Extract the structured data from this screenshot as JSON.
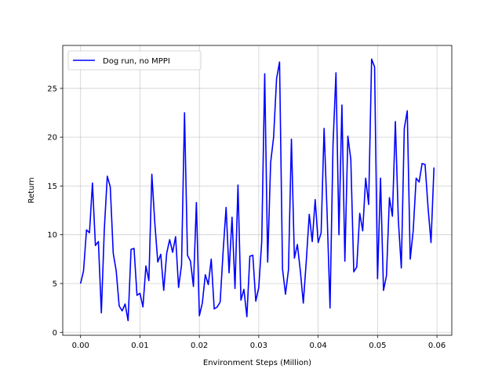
{
  "chart_data": {
    "type": "line",
    "xlabel": "Environment Steps (Million)",
    "ylabel": "Return",
    "xlim": [
      -0.003,
      0.0625
    ],
    "ylim": [
      -0.3,
      29.4
    ],
    "xticks": [
      0.0,
      0.01,
      0.02,
      0.03,
      0.04,
      0.05,
      0.06
    ],
    "xtick_labels": [
      "0.00",
      "0.01",
      "0.02",
      "0.03",
      "0.04",
      "0.05",
      "0.06"
    ],
    "yticks": [
      0,
      5,
      10,
      15,
      20,
      25
    ],
    "ytick_labels": [
      "0",
      "5",
      "10",
      "15",
      "20",
      "25"
    ],
    "grid": true,
    "legend_position": "top-left",
    "series": [
      {
        "name": "Dog run, no MPPI",
        "color": "#0000ff",
        "x": [
          0.0,
          0.0005,
          0.001,
          0.0015,
          0.002,
          0.0025,
          0.003,
          0.0035,
          0.004,
          0.0045,
          0.005,
          0.0055,
          0.006,
          0.0065,
          0.007,
          0.0075,
          0.008,
          0.0085,
          0.009,
          0.0095,
          0.01,
          0.0105,
          0.011,
          0.0115,
          0.012,
          0.0125,
          0.013,
          0.0135,
          0.014,
          0.0145,
          0.015,
          0.0155,
          0.016,
          0.0165,
          0.017,
          0.0175,
          0.018,
          0.0185,
          0.019,
          0.0195,
          0.02,
          0.0205,
          0.021,
          0.0215,
          0.022,
          0.0225,
          0.023,
          0.0235,
          0.024,
          0.0245,
          0.025,
          0.0255,
          0.026,
          0.0265,
          0.027,
          0.0275,
          0.028,
          0.0285,
          0.029,
          0.0295,
          0.03,
          0.0305,
          0.031,
          0.0315,
          0.032,
          0.0325,
          0.033,
          0.0335,
          0.034,
          0.0345,
          0.035,
          0.0355,
          0.036,
          0.0365,
          0.037,
          0.0375,
          0.038,
          0.0385,
          0.039,
          0.0395,
          0.04,
          0.0405,
          0.041,
          0.0415,
          0.042,
          0.0425,
          0.043,
          0.0435,
          0.044,
          0.0445,
          0.045,
          0.0455,
          0.046,
          0.0465,
          0.047,
          0.0475,
          0.048,
          0.0485,
          0.049,
          0.0495,
          0.05,
          0.0505,
          0.051,
          0.0515,
          0.052,
          0.0525,
          0.053,
          0.0535,
          0.054,
          0.0545,
          0.055,
          0.0555,
          0.056,
          0.0565,
          0.057,
          0.0575,
          0.058,
          0.0585,
          0.059,
          0.0595
        ],
        "y": [
          5.0,
          6.3,
          10.5,
          10.2,
          15.3,
          8.9,
          9.3,
          2.0,
          10.6,
          16.0,
          14.9,
          8.1,
          6.3,
          2.7,
          2.2,
          2.9,
          1.2,
          8.5,
          8.6,
          3.8,
          4.0,
          2.6,
          6.8,
          5.3,
          16.2,
          11.2,
          7.2,
          8.0,
          4.3,
          8.1,
          9.5,
          8.2,
          9.8,
          4.6,
          6.9,
          22.5,
          7.9,
          7.3,
          4.7,
          13.3,
          1.7,
          3.0,
          5.9,
          4.9,
          7.5,
          2.4,
          2.6,
          3.1,
          8.3,
          12.8,
          6.1,
          11.8,
          4.5,
          15.1,
          3.3,
          4.4,
          1.6,
          7.8,
          7.9,
          3.2,
          4.6,
          9.3,
          26.5,
          7.2,
          17.4,
          20.0,
          26.0,
          27.7,
          6.5,
          3.9,
          6.4,
          19.8,
          7.6,
          9.0,
          6.3,
          3.0,
          7.3,
          12.1,
          9.3,
          13.6,
          9.2,
          10.2,
          20.9,
          12.3,
          2.5,
          19.2,
          26.6,
          10.0,
          23.3,
          7.3,
          20.1,
          17.7,
          6.2,
          6.7,
          12.2,
          10.4,
          15.8,
          13.1,
          28.0,
          27.2,
          5.5,
          15.8,
          4.3,
          5.8,
          13.8,
          11.9,
          21.6,
          11.5,
          6.6,
          20.9,
          22.7,
          7.5,
          10.4,
          15.8,
          15.4,
          17.3,
          17.2,
          12.8,
          9.2,
          16.9
        ]
      }
    ]
  }
}
